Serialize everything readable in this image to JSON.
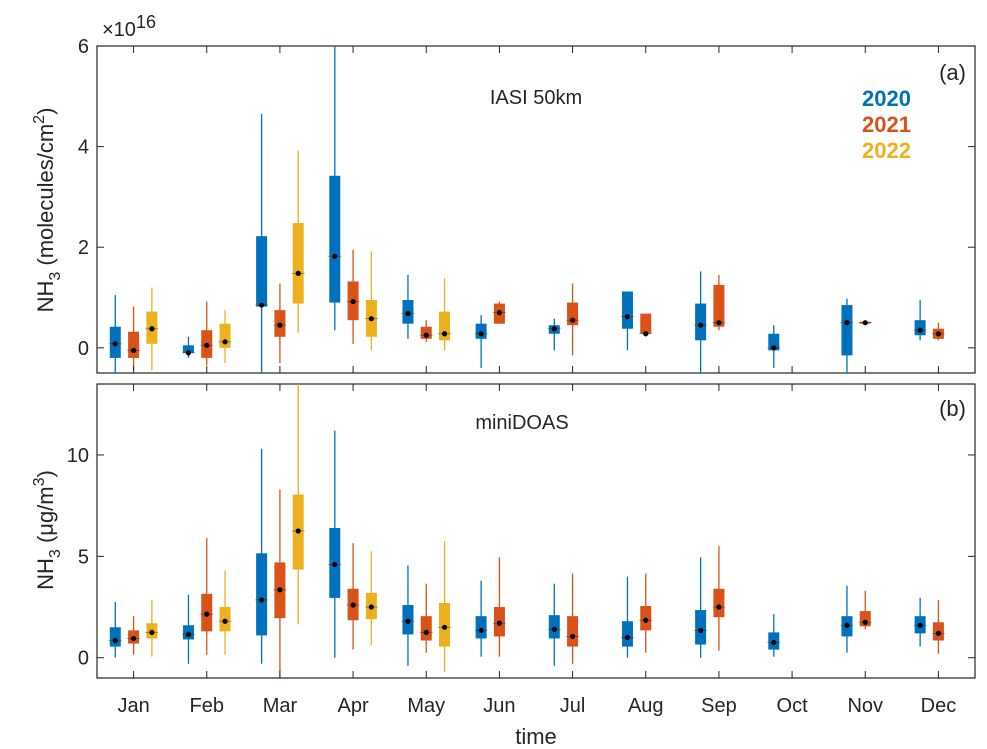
{
  "xlabel": "time",
  "chart_data": [
    {
      "type": "box",
      "panel_label": "(a)",
      "title": "IASI 50km",
      "ylabel": "NH3 (molecules/cm2)",
      "ylabel_parts": {
        "base": "NH",
        "sub": "3",
        "unit_before": " (molecules/cm",
        "sup": "2",
        "unit_after": ")"
      },
      "y_multiplier": "×10",
      "y_multiplier_exp": "16",
      "ylim": [
        -0.5,
        6
      ],
      "yticks": [
        0,
        2,
        4,
        6
      ],
      "ytick_labels": [
        "0",
        "2",
        "4",
        "6"
      ],
      "grid": false,
      "legend_position": "top-right",
      "categories": [
        "Jan",
        "Feb",
        "Mar",
        "Apr",
        "May",
        "Jun",
        "Jul",
        "Aug",
        "Sep",
        "Oct",
        "Nov",
        "Dec"
      ],
      "series": [
        {
          "name": "2020",
          "color": "#0072BD",
          "boxes": [
            {
              "month": 0,
              "wlo": -0.5,
              "q1": -0.2,
              "q3": 0.42,
              "whi": 1.05,
              "median": 0.08
            },
            {
              "month": 1,
              "wlo": -0.2,
              "q1": -0.1,
              "q3": 0.05,
              "whi": 0.22,
              "median": -0.1
            },
            {
              "month": 2,
              "wlo": -0.5,
              "q1": 0.82,
              "q3": 2.22,
              "whi": 4.65,
              "median": 0.85
            },
            {
              "month": 3,
              "wlo": 0.35,
              "q1": 0.9,
              "q3": 3.42,
              "whi": 6.0,
              "median": 1.82
            },
            {
              "month": 4,
              "wlo": 0.18,
              "q1": 0.48,
              "q3": 0.95,
              "whi": 1.45,
              "median": 0.68
            },
            {
              "month": 5,
              "wlo": -0.4,
              "q1": 0.18,
              "q3": 0.48,
              "whi": 0.65,
              "median": 0.28
            },
            {
              "month": 6,
              "wlo": -0.05,
              "q1": 0.28,
              "q3": 0.45,
              "whi": 0.58,
              "median": 0.38
            },
            {
              "month": 7,
              "wlo": -0.05,
              "q1": 0.38,
              "q3": 1.12,
              "whi": 1.12,
              "median": 0.62
            },
            {
              "month": 8,
              "wlo": -0.5,
              "q1": 0.15,
              "q3": 0.88,
              "whi": 1.52,
              "median": 0.45
            },
            {
              "month": 9,
              "wlo": -0.4,
              "q1": -0.05,
              "q3": 0.28,
              "whi": 0.45,
              "median": 0.0
            },
            {
              "month": 10,
              "wlo": -0.5,
              "q1": -0.15,
              "q3": 0.85,
              "whi": 0.98,
              "median": 0.5
            },
            {
              "month": 11,
              "wlo": 0.15,
              "q1": 0.25,
              "q3": 0.55,
              "whi": 0.95,
              "median": 0.35
            }
          ]
        },
        {
          "name": "2021",
          "color": "#D95319",
          "boxes": [
            {
              "month": 0,
              "wlo": -0.45,
              "q1": -0.2,
              "q3": 0.32,
              "whi": 0.82,
              "median": -0.05
            },
            {
              "month": 1,
              "wlo": -0.35,
              "q1": -0.2,
              "q3": 0.35,
              "whi": 0.92,
              "median": 0.05
            },
            {
              "month": 2,
              "wlo": -0.3,
              "q1": 0.22,
              "q3": 0.75,
              "whi": 1.28,
              "median": 0.45
            },
            {
              "month": 3,
              "wlo": 0.08,
              "q1": 0.55,
              "q3": 1.32,
              "whi": 1.95,
              "median": 0.92
            },
            {
              "month": 4,
              "wlo": 0.12,
              "q1": 0.18,
              "q3": 0.42,
              "whi": 0.55,
              "median": 0.25
            },
            {
              "month": 5,
              "wlo": 0.48,
              "q1": 0.48,
              "q3": 0.88,
              "whi": 0.92,
              "median": 0.7
            },
            {
              "month": 6,
              "wlo": -0.15,
              "q1": 0.45,
              "q3": 0.9,
              "whi": 1.28,
              "median": 0.55
            },
            {
              "month": 7,
              "wlo": 0.25,
              "q1": 0.28,
              "q3": 0.68,
              "whi": 0.68,
              "median": 0.28
            },
            {
              "month": 8,
              "wlo": 0.35,
              "q1": 0.42,
              "q3": 1.25,
              "whi": 1.45,
              "median": 0.5
            },
            {
              "month": 10,
              "wlo": 0.5,
              "q1": 0.48,
              "q3": 0.52,
              "whi": 0.52,
              "median": 0.5
            },
            {
              "month": 11,
              "wlo": 0.15,
              "q1": 0.18,
              "q3": 0.38,
              "whi": 0.5,
              "median": 0.28
            }
          ]
        },
        {
          "name": "2022",
          "color": "#EDB120",
          "boxes": [
            {
              "month": 0,
              "wlo": -0.45,
              "q1": 0.08,
              "q3": 0.72,
              "whi": 1.2,
              "median": 0.38
            },
            {
              "month": 1,
              "wlo": -0.3,
              "q1": 0.0,
              "q3": 0.48,
              "whi": 0.75,
              "median": 0.12
            },
            {
              "month": 2,
              "wlo": 0.3,
              "q1": 0.88,
              "q3": 2.48,
              "whi": 3.92,
              "median": 1.48
            },
            {
              "month": 3,
              "wlo": -0.05,
              "q1": 0.22,
              "q3": 0.95,
              "whi": 1.92,
              "median": 0.58
            },
            {
              "month": 4,
              "wlo": -0.05,
              "q1": 0.15,
              "q3": 0.72,
              "whi": 1.38,
              "median": 0.28
            }
          ]
        }
      ]
    },
    {
      "type": "box",
      "panel_label": "(b)",
      "title": "miniDOAS",
      "ylabel": "NH3 (μg/m3)",
      "ylabel_parts": {
        "base": "NH",
        "sub": "3",
        "unit_before": " (μg/m",
        "sup": "3",
        "unit_after": ")"
      },
      "ylim": [
        -1,
        13.5
      ],
      "yticks": [
        0,
        5,
        10
      ],
      "ytick_labels": [
        "0",
        "5",
        "10"
      ],
      "grid": false,
      "categories": [
        "Jan",
        "Feb",
        "Mar",
        "Apr",
        "May",
        "Jun",
        "Jul",
        "Aug",
        "Sep",
        "Oct",
        "Nov",
        "Dec"
      ],
      "series": [
        {
          "name": "2020",
          "color": "#0072BD",
          "boxes": [
            {
              "month": 0,
              "wlo": 0.0,
              "q1": 0.55,
              "q3": 1.5,
              "whi": 2.75,
              "median": 0.85
            },
            {
              "month": 1,
              "wlo": -0.3,
              "q1": 0.9,
              "q3": 1.6,
              "whi": 3.1,
              "median": 1.15
            },
            {
              "month": 2,
              "wlo": -0.3,
              "q1": 1.1,
              "q3": 5.15,
              "whi": 10.3,
              "median": 2.85
            },
            {
              "month": 3,
              "wlo": 0.0,
              "q1": 2.95,
              "q3": 6.4,
              "whi": 11.2,
              "median": 4.6
            },
            {
              "month": 4,
              "wlo": -0.4,
              "q1": 1.15,
              "q3": 2.6,
              "whi": 4.55,
              "median": 1.8
            },
            {
              "month": 5,
              "wlo": 0.05,
              "q1": 0.95,
              "q3": 2.05,
              "whi": 3.8,
              "median": 1.35
            },
            {
              "month": 6,
              "wlo": -0.4,
              "q1": 0.95,
              "q3": 2.1,
              "whi": 3.65,
              "median": 1.4
            },
            {
              "month": 7,
              "wlo": 0.0,
              "q1": 0.55,
              "q3": 1.8,
              "whi": 4.0,
              "median": 1.0
            },
            {
              "month": 8,
              "wlo": 0.0,
              "q1": 0.65,
              "q3": 2.35,
              "whi": 4.95,
              "median": 1.35
            },
            {
              "month": 9,
              "wlo": 0.05,
              "q1": 0.4,
              "q3": 1.25,
              "whi": 2.15,
              "median": 0.75
            },
            {
              "month": 10,
              "wlo": 0.25,
              "q1": 1.05,
              "q3": 2.05,
              "whi": 3.55,
              "median": 1.6
            },
            {
              "month": 11,
              "wlo": 0.55,
              "q1": 1.2,
              "q3": 2.05,
              "whi": 2.95,
              "median": 1.6
            }
          ]
        },
        {
          "name": "2021",
          "color": "#D95319",
          "boxes": [
            {
              "month": 0,
              "wlo": 0.15,
              "q1": 0.7,
              "q3": 1.35,
              "whi": 2.05,
              "median": 0.95
            },
            {
              "month": 1,
              "wlo": 0.15,
              "q1": 1.3,
              "q3": 3.15,
              "whi": 5.9,
              "median": 2.15
            },
            {
              "month": 2,
              "wlo": -1.0,
              "q1": 1.95,
              "q3": 4.7,
              "whi": 8.3,
              "median": 3.35
            },
            {
              "month": 3,
              "wlo": 0.4,
              "q1": 1.85,
              "q3": 3.4,
              "whi": 5.65,
              "median": 2.6
            },
            {
              "month": 4,
              "wlo": 0.25,
              "q1": 0.85,
              "q3": 2.05,
              "whi": 3.65,
              "median": 1.25
            },
            {
              "month": 5,
              "wlo": 0.05,
              "q1": 1.05,
              "q3": 2.5,
              "whi": 4.95,
              "median": 1.7
            },
            {
              "month": 6,
              "wlo": -0.3,
              "q1": 0.55,
              "q3": 2.05,
              "whi": 4.15,
              "median": 1.05
            },
            {
              "month": 7,
              "wlo": 0.25,
              "q1": 1.35,
              "q3": 2.55,
              "whi": 4.15,
              "median": 1.85
            },
            {
              "month": 8,
              "wlo": 0.35,
              "q1": 2.0,
              "q3": 3.4,
              "whi": 5.5,
              "median": 2.5
            },
            {
              "month": 10,
              "wlo": 1.4,
              "q1": 1.55,
              "q3": 2.3,
              "whi": 3.3,
              "median": 1.75
            },
            {
              "month": 11,
              "wlo": 0.2,
              "q1": 0.85,
              "q3": 1.75,
              "whi": 2.85,
              "median": 1.2
            }
          ]
        },
        {
          "name": "2022",
          "color": "#EDB120",
          "boxes": [
            {
              "month": 0,
              "wlo": 0.05,
              "q1": 0.95,
              "q3": 1.7,
              "whi": 2.85,
              "median": 1.25
            },
            {
              "month": 1,
              "wlo": 0.15,
              "q1": 1.3,
              "q3": 2.5,
              "whi": 4.3,
              "median": 1.8
            },
            {
              "month": 2,
              "wlo": 1.65,
              "q1": 4.35,
              "q3": 8.05,
              "whi": 13.5,
              "median": 6.25
            },
            {
              "month": 3,
              "wlo": 0.6,
              "q1": 1.9,
              "q3": 3.2,
              "whi": 5.25,
              "median": 2.5
            },
            {
              "month": 4,
              "wlo": -0.7,
              "q1": 0.55,
              "q3": 2.7,
              "whi": 5.75,
              "median": 1.5
            }
          ]
        }
      ]
    }
  ]
}
